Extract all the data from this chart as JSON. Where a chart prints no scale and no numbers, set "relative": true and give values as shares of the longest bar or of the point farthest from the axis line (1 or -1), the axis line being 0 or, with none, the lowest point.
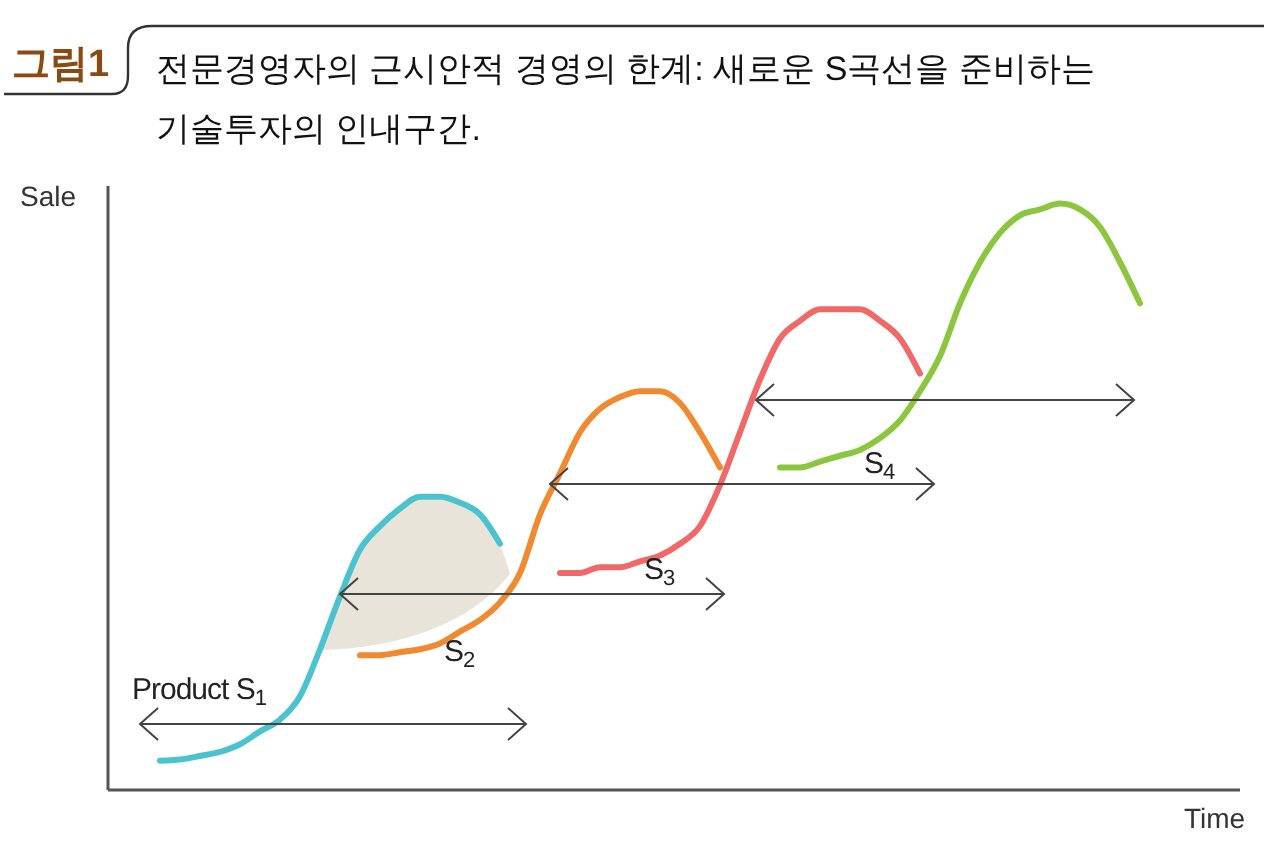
{
  "chart_data": {
    "type": "line",
    "relative": true,
    "title": "전문경영자의 근시안적 경영의 한계: 새로운 S곡선을 준비하는 기술투자의 인내구간.",
    "annotations": [
      "그림1"
    ],
    "xlabel": "Time",
    "ylabel": "Sale",
    "categories": [
      null,
      null,
      null,
      null,
      null,
      null,
      null,
      null,
      null,
      null,
      null,
      null,
      null,
      null,
      null,
      null,
      null,
      null,
      null,
      null,
      null,
      null,
      null,
      null,
      null,
      null,
      null,
      null,
      null,
      null,
      null,
      null,
      null,
      null,
      null,
      null,
      null,
      null,
      null,
      null,
      null,
      null,
      null,
      null,
      null,
      null,
      null,
      null,
      null,
      null,
      null,
      null
    ],
    "series": [
      {
        "name": "Product S$_{1}$",
        "color": "#4bc3cf",
        "values": [
          null,
          null,
          0.05,
          0.052,
          0.058,
          0.065,
          0.078,
          0.1,
          0.12,
          0.16,
          0.24,
          0.33,
          0.41,
          0.45,
          0.48,
          0.5,
          0.5,
          0.49,
          0.47,
          0.42,
          null,
          null,
          null,
          null,
          null,
          null,
          null,
          null,
          null,
          null,
          null,
          null,
          null,
          null,
          null,
          null,
          null,
          null,
          null,
          null,
          null,
          null,
          null,
          null,
          null,
          null,
          null,
          null,
          null,
          null,
          null,
          null
        ]
      },
      {
        "name": "S$_{2}$",
        "color": "#f08a30",
        "values": [
          null,
          null,
          null,
          null,
          null,
          null,
          null,
          null,
          null,
          null,
          null,
          null,
          0.23,
          0.23,
          0.235,
          0.24,
          0.25,
          0.27,
          0.29,
          0.32,
          0.37,
          0.47,
          0.54,
          0.61,
          0.65,
          0.67,
          0.68,
          0.68,
          0.66,
          0.61,
          0.55,
          null,
          null,
          null,
          null,
          null,
          null,
          null,
          null,
          null,
          null,
          null,
          null,
          null,
          null,
          null,
          null,
          null,
          null,
          null,
          null,
          null
        ]
      },
      {
        "name": "S$_{3}$",
        "color": "#f06868",
        "values": [
          null,
          null,
          null,
          null,
          null,
          null,
          null,
          null,
          null,
          null,
          null,
          null,
          null,
          null,
          null,
          null,
          null,
          null,
          null,
          null,
          null,
          null,
          0.37,
          0.37,
          0.38,
          0.38,
          0.39,
          0.4,
          0.42,
          0.45,
          0.52,
          0.61,
          0.7,
          0.77,
          0.8,
          0.82,
          0.82,
          0.82,
          0.8,
          0.77,
          0.71,
          null,
          null,
          null,
          null,
          null,
          null,
          null,
          null,
          null,
          null,
          null
        ]
      },
      {
        "name": "S$_{4}$",
        "color": "#8cc63f",
        "values": [
          null,
          null,
          null,
          null,
          null,
          null,
          null,
          null,
          null,
          null,
          null,
          null,
          null,
          null,
          null,
          null,
          null,
          null,
          null,
          null,
          null,
          null,
          null,
          null,
          null,
          null,
          null,
          null,
          null,
          null,
          null,
          null,
          null,
          0.55,
          0.55,
          0.56,
          0.57,
          0.58,
          0.6,
          0.63,
          0.68,
          0.74,
          0.83,
          0.9,
          0.95,
          0.98,
          0.99,
          1,
          0.99,
          0.96,
          0.9,
          0.83
        ]
      }
    ]
  }
}
